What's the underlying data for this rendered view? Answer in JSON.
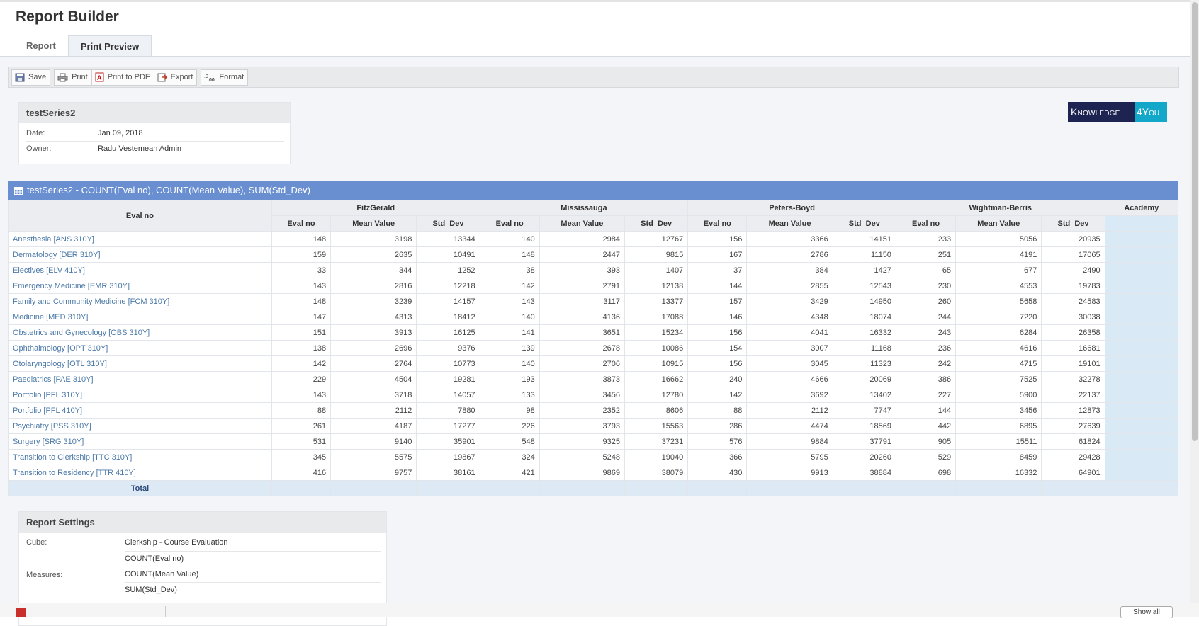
{
  "app": {
    "title": "Report Builder"
  },
  "tabs": [
    {
      "label": "Report",
      "active": false
    },
    {
      "label": "Print Preview",
      "active": true
    }
  ],
  "toolbar": {
    "save": "Save",
    "print": "Print",
    "print_pdf": "Print to PDF",
    "export": "Export",
    "format": "Format"
  },
  "report_info": {
    "name": "testSeries2",
    "date_label": "Date:",
    "date": "Jan 09, 2018",
    "owner_label": "Owner:",
    "owner": "Radu Vestemean Admin"
  },
  "logo": {
    "part1": "Knowledge",
    "part2": "4You",
    "colors": {
      "dark": "#1d2451",
      "accent": "#13a7c9"
    }
  },
  "grid": {
    "title": "testSeries2 - COUNT(Eval no), COUNT(Mean Value), SUM(Std_Dev)",
    "row_header": "Eval no",
    "groups": [
      "FitzGerald",
      "Mississauga",
      "Peters-Boyd",
      "Wightman-Berris",
      "Academy"
    ],
    "subcols": [
      "Eval no",
      "Mean Value",
      "Std_Dev"
    ],
    "rows": [
      {
        "label": "Anesthesia [ANS 310Y]",
        "values": [
          "148",
          "3198",
          "13344",
          "140",
          "2984",
          "12767",
          "156",
          "3366",
          "14151",
          "233",
          "5056",
          "20935"
        ]
      },
      {
        "label": "Dermatology [DER 310Y]",
        "values": [
          "159",
          "2635",
          "10491",
          "148",
          "2447",
          "9815",
          "167",
          "2786",
          "11150",
          "251",
          "4191",
          "17065"
        ]
      },
      {
        "label": "Electives [ELV 410Y]",
        "values": [
          "33",
          "344",
          "1252",
          "38",
          "393",
          "1407",
          "37",
          "384",
          "1427",
          "65",
          "677",
          "2490"
        ]
      },
      {
        "label": "Emergency Medicine [EMR 310Y]",
        "values": [
          "143",
          "2816",
          "12218",
          "142",
          "2791",
          "12138",
          "144",
          "2855",
          "12543",
          "230",
          "4553",
          "19783"
        ]
      },
      {
        "label": "Family and Community Medicine [FCM 310Y]",
        "values": [
          "148",
          "3239",
          "14157",
          "143",
          "3117",
          "13377",
          "157",
          "3429",
          "14950",
          "260",
          "5658",
          "24583"
        ]
      },
      {
        "label": "Medicine [MED 310Y]",
        "values": [
          "147",
          "4313",
          "18412",
          "140",
          "4136",
          "17088",
          "146",
          "4348",
          "18074",
          "244",
          "7220",
          "30038"
        ]
      },
      {
        "label": "Obstetrics and Gynecology [OBS 310Y]",
        "values": [
          "151",
          "3913",
          "16125",
          "141",
          "3651",
          "15234",
          "156",
          "4041",
          "16332",
          "243",
          "6284",
          "26358"
        ]
      },
      {
        "label": "Ophthalmology [OPT 310Y]",
        "values": [
          "138",
          "2696",
          "9376",
          "139",
          "2678",
          "10086",
          "154",
          "3007",
          "11168",
          "236",
          "4616",
          "16681"
        ]
      },
      {
        "label": "Otolaryngology [OTL 310Y]",
        "values": [
          "142",
          "2764",
          "10773",
          "140",
          "2706",
          "10915",
          "156",
          "3045",
          "11323",
          "242",
          "4715",
          "19101"
        ]
      },
      {
        "label": "Paediatrics [PAE 310Y]",
        "values": [
          "229",
          "4504",
          "19281",
          "193",
          "3873",
          "16662",
          "240",
          "4666",
          "20069",
          "386",
          "7525",
          "32278"
        ]
      },
      {
        "label": "Portfolio [PFL 310Y]",
        "values": [
          "143",
          "3718",
          "14057",
          "133",
          "3456",
          "12780",
          "142",
          "3692",
          "13402",
          "227",
          "5900",
          "22137"
        ]
      },
      {
        "label": "Portfolio [PFL 410Y]",
        "values": [
          "88",
          "2112",
          "7880",
          "98",
          "2352",
          "8606",
          "88",
          "2112",
          "7747",
          "144",
          "3456",
          "12873"
        ]
      },
      {
        "label": "Psychiatry [PSS 310Y]",
        "values": [
          "261",
          "4187",
          "17277",
          "226",
          "3793",
          "15563",
          "286",
          "4474",
          "18569",
          "442",
          "6895",
          "27639"
        ]
      },
      {
        "label": "Surgery [SRG 310Y]",
        "values": [
          "531",
          "9140",
          "35901",
          "548",
          "9325",
          "37231",
          "576",
          "9884",
          "37791",
          "905",
          "15511",
          "61824"
        ]
      },
      {
        "label": "Transition to Clerkship [TTC 310Y]",
        "values": [
          "345",
          "5575",
          "19867",
          "324",
          "5248",
          "19040",
          "366",
          "5795",
          "20260",
          "529",
          "8459",
          "29428"
        ]
      },
      {
        "label": "Transition to Residency [TTR 410Y]",
        "values": [
          "416",
          "9757",
          "38161",
          "421",
          "9869",
          "38079",
          "430",
          "9913",
          "38884",
          "698",
          "16332",
          "64901"
        ]
      }
    ],
    "total_label": "Total"
  },
  "settings": {
    "title": "Report Settings",
    "cube_label": "Cube:",
    "cube": "Clerkship - Course Evaluation",
    "measures_label": "Measures:",
    "measures": [
      "COUNT(Eval no)",
      "COUNT(Mean Value)",
      "SUM(Std_Dev)"
    ]
  },
  "statusbar": {
    "button": "Show all"
  },
  "colors": {
    "grid_header": "#6a8fd0",
    "link": "#4b79a8",
    "academy_fill": "#d9e9f6"
  }
}
